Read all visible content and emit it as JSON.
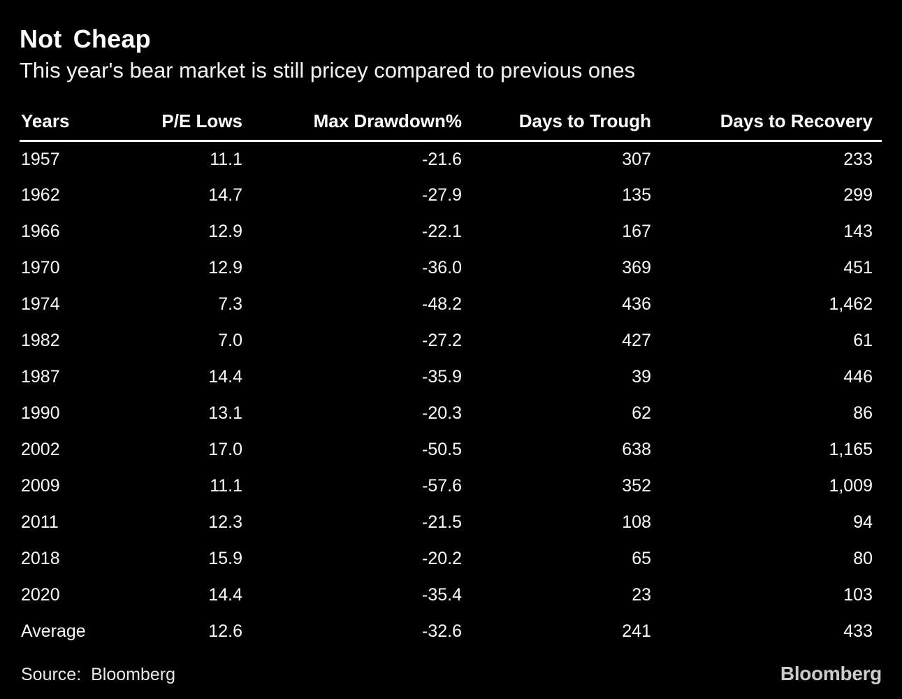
{
  "header": {
    "title": "Not Cheap",
    "subtitle": "This year's bear market is still pricey compared to previous ones"
  },
  "table": {
    "columns": [
      "Years",
      "P/E Lows",
      "Max Drawdown%",
      "Days to Trough",
      "Days to Recovery"
    ],
    "rows": [
      [
        "1957",
        "11.1",
        "-21.6",
        "307",
        "233"
      ],
      [
        "1962",
        "14.7",
        "-27.9",
        "135",
        "299"
      ],
      [
        "1966",
        "12.9",
        "-22.1",
        "167",
        "143"
      ],
      [
        "1970",
        "12.9",
        "-36.0",
        "369",
        "451"
      ],
      [
        "1974",
        "7.3",
        "-48.2",
        "436",
        "1,462"
      ],
      [
        "1982",
        "7.0",
        "-27.2",
        "427",
        "61"
      ],
      [
        "1987",
        "14.4",
        "-35.9",
        "39",
        "446"
      ],
      [
        "1990",
        "13.1",
        "-20.3",
        "62",
        "86"
      ],
      [
        "2002",
        "17.0",
        "-50.5",
        "638",
        "1,165"
      ],
      [
        "2009",
        "11.1",
        "-57.6",
        "352",
        "1,009"
      ],
      [
        "2011",
        "12.3",
        "-21.5",
        "108",
        "94"
      ],
      [
        "2018",
        "15.9",
        "-20.2",
        "65",
        "80"
      ],
      [
        "2020",
        "14.4",
        "-35.4",
        "23",
        "103"
      ],
      [
        "Average",
        "12.6",
        "-32.6",
        "241",
        "433"
      ]
    ]
  },
  "footer": {
    "source": "Source: Bloomberg",
    "logo": "Bloomberg"
  },
  "colors": {
    "background": "#000000",
    "text": "#ffffff",
    "divider": "#ffffff",
    "logo": "#cccccc"
  },
  "chart_data": {
    "type": "table",
    "title": "Not Cheap",
    "subtitle": "This year's bear market is still pricey compared to previous ones",
    "columns": [
      "Years",
      "P/E Lows",
      "Max Drawdown%",
      "Days to Trough",
      "Days to Recovery"
    ],
    "rows": [
      {
        "year": "1957",
        "pe_low": 11.1,
        "max_drawdown_pct": -21.6,
        "days_to_trough": 307,
        "days_to_recovery": 233
      },
      {
        "year": "1962",
        "pe_low": 14.7,
        "max_drawdown_pct": -27.9,
        "days_to_trough": 135,
        "days_to_recovery": 299
      },
      {
        "year": "1966",
        "pe_low": 12.9,
        "max_drawdown_pct": -22.1,
        "days_to_trough": 167,
        "days_to_recovery": 143
      },
      {
        "year": "1970",
        "pe_low": 12.9,
        "max_drawdown_pct": -36.0,
        "days_to_trough": 369,
        "days_to_recovery": 451
      },
      {
        "year": "1974",
        "pe_low": 7.3,
        "max_drawdown_pct": -48.2,
        "days_to_trough": 436,
        "days_to_recovery": 1462
      },
      {
        "year": "1982",
        "pe_low": 7.0,
        "max_drawdown_pct": -27.2,
        "days_to_trough": 427,
        "days_to_recovery": 61
      },
      {
        "year": "1987",
        "pe_low": 14.4,
        "max_drawdown_pct": -35.9,
        "days_to_trough": 39,
        "days_to_recovery": 446
      },
      {
        "year": "1990",
        "pe_low": 13.1,
        "max_drawdown_pct": -20.3,
        "days_to_trough": 62,
        "days_to_recovery": 86
      },
      {
        "year": "2002",
        "pe_low": 17.0,
        "max_drawdown_pct": -50.5,
        "days_to_trough": 638,
        "days_to_recovery": 1165
      },
      {
        "year": "2009",
        "pe_low": 11.1,
        "max_drawdown_pct": -57.6,
        "days_to_trough": 352,
        "days_to_recovery": 1009
      },
      {
        "year": "2011",
        "pe_low": 12.3,
        "max_drawdown_pct": -21.5,
        "days_to_trough": 108,
        "days_to_recovery": 94
      },
      {
        "year": "2018",
        "pe_low": 15.9,
        "max_drawdown_pct": -20.2,
        "days_to_trough": 65,
        "days_to_recovery": 80
      },
      {
        "year": "2020",
        "pe_low": 14.4,
        "max_drawdown_pct": -35.4,
        "days_to_trough": 23,
        "days_to_recovery": 103
      },
      {
        "year": "Average",
        "pe_low": 12.6,
        "max_drawdown_pct": -32.6,
        "days_to_trough": 241,
        "days_to_recovery": 433
      }
    ],
    "source": "Source: Bloomberg",
    "layout": {
      "background": "black",
      "header_rule": true,
      "numeric_alignment": "right"
    }
  }
}
